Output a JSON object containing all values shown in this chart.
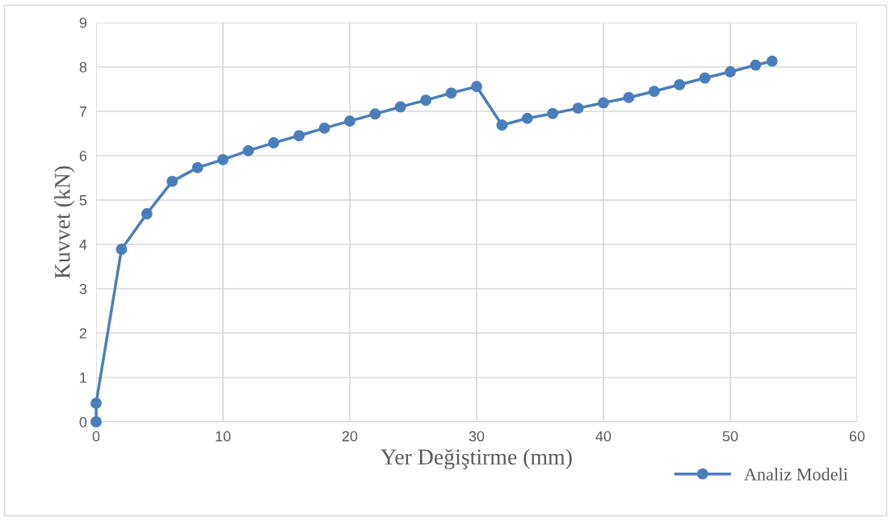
{
  "chart_data": {
    "type": "line",
    "xlabel": "Yer Değiştirme (mm)",
    "ylabel": "Kuvvet (kN)",
    "x": [
      0,
      0,
      2,
      4,
      6,
      8,
      10,
      12,
      14,
      16,
      18,
      20,
      22,
      24,
      26,
      28,
      30,
      32,
      34,
      36,
      38,
      40,
      42,
      44,
      46,
      48,
      50,
      52,
      53.3
    ],
    "series": [
      {
        "name": "Analiz Modeli",
        "color": "#4a7ebb",
        "values": [
          0,
          0.42,
          3.89,
          4.69,
          5.42,
          5.73,
          5.91,
          6.11,
          6.29,
          6.45,
          6.62,
          6.78,
          6.94,
          7.1,
          7.25,
          7.41,
          7.56,
          6.69,
          6.84,
          6.95,
          7.07,
          7.19,
          7.31,
          7.45,
          7.6,
          7.75,
          7.89,
          8.04,
          8.13
        ]
      }
    ],
    "xlim": [
      0,
      60
    ],
    "xticks": [
      0,
      10,
      20,
      30,
      40,
      50,
      60
    ],
    "ylim": [
      0,
      9
    ],
    "yticks": [
      0,
      1,
      2,
      3,
      4,
      5,
      6,
      7,
      8,
      9
    ],
    "grid": true,
    "legend": "bottom right",
    "marker": "circle",
    "line_style": "solid"
  }
}
